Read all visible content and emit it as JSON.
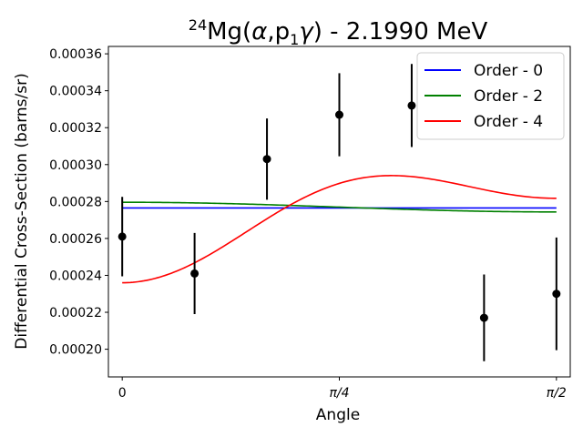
{
  "chart_data": {
    "type": "line",
    "title": "",
    "title_parts": {
      "sup": "24",
      "main_a": "Mg(",
      "alpha": "α",
      "comma_p": ",p",
      "sub": "1",
      "gamma": "γ",
      "rest": ") - 2.1990 MeV"
    },
    "xlabel": "Angle",
    "ylabel": "Differential Cross-Section (barns/sr)",
    "xlim": [
      -0.05,
      1.6208
    ],
    "ylim": [
      0.000185,
      0.000364
    ],
    "x_ticks": [
      {
        "value": 0,
        "label": "0"
      },
      {
        "value": 0.7854,
        "label": "π/4"
      },
      {
        "value": 1.5708,
        "label": "π/2"
      }
    ],
    "y_ticks": [
      {
        "value": 0.0002,
        "label": "0.00020"
      },
      {
        "value": 0.00022,
        "label": "0.00022"
      },
      {
        "value": 0.00024,
        "label": "0.00024"
      },
      {
        "value": 0.00026,
        "label": "0.00026"
      },
      {
        "value": 0.00028,
        "label": "0.00028"
      },
      {
        "value": 0.0003,
        "label": "0.00030"
      },
      {
        "value": 0.00032,
        "label": "0.00032"
      },
      {
        "value": 0.00034,
        "label": "0.00034"
      },
      {
        "value": 0.00036,
        "label": "0.00036"
      }
    ],
    "data_points": [
      {
        "x": 0.0,
        "y": 0.000261,
        "err": 2.15e-05
      },
      {
        "x": 0.2618,
        "y": 0.000241,
        "err": 2.2e-05
      },
      {
        "x": 0.5236,
        "y": 0.000303,
        "err": 2.2e-05
      },
      {
        "x": 0.7854,
        "y": 0.000327,
        "err": 2.25e-05
      },
      {
        "x": 1.0472,
        "y": 0.000332,
        "err": 2.25e-05
      },
      {
        "x": 1.309,
        "y": 0.000217,
        "err": 2.35e-05
      },
      {
        "x": 1.5708,
        "y": 0.00023,
        "err": 3.05e-05
      }
    ],
    "series": [
      {
        "name": "Order - 0",
        "color": "#0000ff",
        "a0": 0.0002765,
        "a2": 0.0,
        "a4": 0.0
      },
      {
        "name": "Order - 2",
        "color": "#008000",
        "a0": 0.0002761,
        "a2": 3.5e-06,
        "a4": 0.0
      },
      {
        "name": "Order - 4",
        "color": "#ff0000",
        "a0": 0.000283,
        "a2": -1.87e-05,
        "a4": -2.83e-05
      }
    ],
    "legend_position": "top-right",
    "grid": false,
    "point_color": "#000000"
  }
}
